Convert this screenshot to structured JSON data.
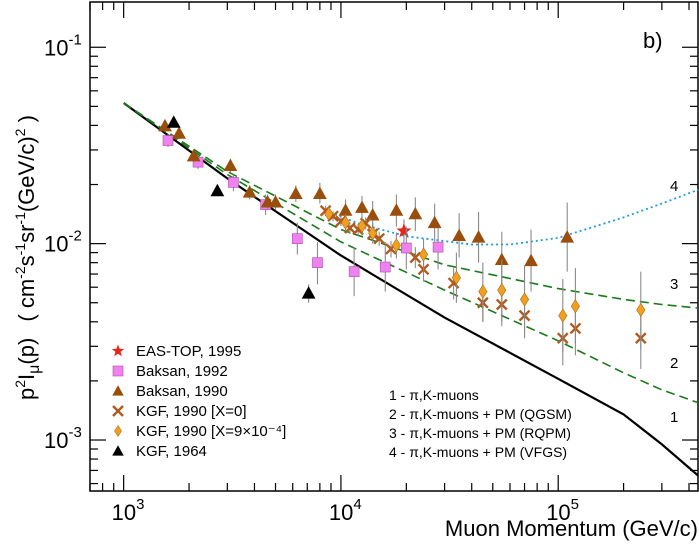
{
  "chart_data": {
    "type": "scatter",
    "panel_label": "b)",
    "xlabel": "Muon Momentum (GeV/c)",
    "ylabel_parts": [
      "p",
      "2",
      "I",
      "μ",
      "(p)",
      "( cm",
      "-2",
      "s",
      "-1",
      "sr",
      "-1",
      "(GeV/c)",
      "2",
      " )"
    ],
    "x_scale": "log",
    "y_scale": "log",
    "xlim": [
      700,
      440000
    ],
    "ylim": [
      0.00055,
      0.17
    ],
    "x_ticks": [
      {
        "value": 1000,
        "base": "10",
        "exp": "3"
      },
      {
        "value": 10000,
        "base": "10",
        "exp": "4"
      },
      {
        "value": 100000,
        "base": "10",
        "exp": "5"
      }
    ],
    "y_ticks": [
      {
        "value": 0.001,
        "base": "10",
        "exp": "-3"
      },
      {
        "value": 0.01,
        "base": "10",
        "exp": "-2"
      },
      {
        "value": 0.1,
        "base": "10",
        "exp": "-1"
      }
    ],
    "series": [
      {
        "name": "EAS-TOP, 1995",
        "marker": "star",
        "color": "#e8251b",
        "points": [
          [
            19500,
            0.0116,
            0.0098,
            0.0133
          ]
        ]
      },
      {
        "name": "Baksan, 1992",
        "marker": "square",
        "color": "#ee82ee",
        "points": [
          [
            1600,
            0.0335,
            0.031,
            0.036
          ],
          [
            2200,
            0.026,
            0.024,
            0.028
          ],
          [
            3200,
            0.0205,
            0.0185,
            0.0225
          ],
          [
            4500,
            0.0158,
            0.014,
            0.0178
          ],
          [
            6300,
            0.0106,
            0.0088,
            0.0128
          ],
          [
            7800,
            0.008,
            0.0062,
            0.0102
          ],
          [
            11500,
            0.0072,
            0.0054,
            0.0096
          ],
          [
            16000,
            0.0076,
            0.0057,
            0.0102
          ],
          [
            20000,
            0.0095,
            0.0074,
            0.0122
          ],
          [
            28000,
            0.0096,
            0.0074,
            0.0124
          ]
        ]
      },
      {
        "name": "Baksan, 1990",
        "marker": "triangle",
        "color": "#9a4e0c",
        "points": [
          [
            1550,
            0.0398,
            0.037,
            0.042
          ],
          [
            1800,
            0.0365,
            0.034,
            0.039
          ],
          [
            2100,
            0.028,
            0.026,
            0.03
          ],
          [
            3100,
            0.025,
            0.023,
            0.027
          ],
          [
            3800,
            0.0183,
            0.0168,
            0.0198
          ],
          [
            4600,
            0.0163,
            0.0148,
            0.0178
          ],
          [
            5000,
            0.0163,
            0.0148,
            0.0178
          ],
          [
            6200,
            0.018,
            0.0163,
            0.0198
          ],
          [
            8000,
            0.018,
            0.016,
            0.0204
          ],
          [
            10500,
            0.0148,
            0.0128,
            0.0168
          ],
          [
            12500,
            0.0153,
            0.0133,
            0.0175
          ],
          [
            14000,
            0.014,
            0.0118,
            0.0165
          ],
          [
            18000,
            0.0148,
            0.0122,
            0.0178
          ],
          [
            22000,
            0.0142,
            0.0116,
            0.0172
          ],
          [
            27000,
            0.0128,
            0.0102,
            0.016
          ],
          [
            35000,
            0.011,
            0.0085,
            0.0143
          ],
          [
            43000,
            0.0108,
            0.008,
            0.0145
          ],
          [
            55000,
            0.0083,
            0.006,
            0.0115
          ],
          [
            75000,
            0.0082,
            0.0057,
            0.0118
          ],
          [
            110000,
            0.0108,
            0.0072,
            0.0162
          ]
        ]
      },
      {
        "name": "KGF, 1990 [X=0]",
        "marker": "cross",
        "color": "#b05a1e",
        "points": [
          [
            8500,
            0.0147,
            0.0138,
            0.0156
          ],
          [
            9200,
            0.0138,
            0.013,
            0.0146
          ],
          [
            10000,
            0.013,
            0.0123,
            0.0138
          ],
          [
            11000,
            0.012,
            0.0112,
            0.0128
          ],
          [
            12000,
            0.0118,
            0.011,
            0.0126
          ],
          [
            13000,
            0.0127,
            0.0118,
            0.0136
          ],
          [
            14000,
            0.0112,
            0.0104,
            0.012
          ],
          [
            15000,
            0.0106,
            0.0097,
            0.0115
          ],
          [
            17000,
            0.0094,
            0.0085,
            0.0103
          ],
          [
            22000,
            0.0085,
            0.0075,
            0.0096
          ],
          [
            24000,
            0.0074,
            0.0064,
            0.0085
          ],
          [
            33000,
            0.0063,
            0.0052,
            0.0075
          ],
          [
            45000,
            0.005,
            0.004,
            0.0062
          ],
          [
            55000,
            0.0049,
            0.0038,
            0.0062
          ],
          [
            70000,
            0.0043,
            0.0033,
            0.0055
          ],
          [
            105000,
            0.0033,
            0.0024,
            0.0046
          ],
          [
            120000,
            0.0037,
            0.0027,
            0.0052
          ],
          [
            240000,
            0.0033,
            0.0023,
            0.0048
          ]
        ]
      },
      {
        "name": "KGF, 1990 [X=9×10⁻⁴]",
        "marker": "diamond",
        "color": "#f0a020",
        "points": [
          [
            8800,
            0.0142,
            0.013,
            0.0155
          ],
          [
            10500,
            0.0128,
            0.0116,
            0.0141
          ],
          [
            12500,
            0.0123,
            0.011,
            0.0137
          ],
          [
            14000,
            0.0113,
            0.01,
            0.0128
          ],
          [
            18000,
            0.0098,
            0.0084,
            0.0114
          ],
          [
            24000,
            0.0088,
            0.0073,
            0.0106
          ],
          [
            34000,
            0.0067,
            0.005,
            0.009
          ],
          [
            45000,
            0.0057,
            0.004,
            0.008
          ],
          [
            55000,
            0.0058,
            0.004,
            0.0083
          ],
          [
            70000,
            0.0052,
            0.0035,
            0.0077
          ],
          [
            105000,
            0.0043,
            0.0028,
            0.0066
          ],
          [
            120000,
            0.0048,
            0.0031,
            0.0075
          ],
          [
            240000,
            0.0046,
            0.0029,
            0.0072
          ]
        ]
      },
      {
        "name": "KGF, 1964",
        "marker": "triangle",
        "color": "#000000",
        "points": [
          [
            1700,
            0.0415,
            0.0395,
            0.0435
          ],
          [
            2700,
            0.0186,
            0.0176,
            0.0196
          ],
          [
            7100,
            0.0056,
            0.005,
            0.0062
          ]
        ]
      }
    ],
    "models": [
      {
        "label": "1",
        "description": "1 -  π,K-muons",
        "style": "solid",
        "color": "#000000",
        "points": [
          [
            1000,
            0.052
          ],
          [
            3000,
            0.0215
          ],
          [
            10000,
            0.0087
          ],
          [
            30000,
            0.0042
          ],
          [
            100000,
            0.00205
          ],
          [
            200000,
            0.00135
          ],
          [
            300000,
            0.00095
          ],
          [
            440000,
            0.00066
          ]
        ]
      },
      {
        "label": "2",
        "description": "2 -  π,K-muons  +  PM (QGSM)",
        "style": "dashed",
        "color": "#1a7a1a",
        "points": [
          [
            1000,
            0.052
          ],
          [
            3000,
            0.0225
          ],
          [
            10000,
            0.0102
          ],
          [
            30000,
            0.0058
          ],
          [
            100000,
            0.0032
          ],
          [
            200000,
            0.0022
          ],
          [
            300000,
            0.0018
          ],
          [
            440000,
            0.00155
          ]
        ]
      },
      {
        "label": "3",
        "description": "3 -  π,K-muons  +  PM (RQPM)",
        "style": "dashed",
        "color": "#1a7a1a",
        "points": [
          [
            1000,
            0.052
          ],
          [
            3000,
            0.0233
          ],
          [
            10000,
            0.0118
          ],
          [
            30000,
            0.0078
          ],
          [
            100000,
            0.0059
          ],
          [
            200000,
            0.0052
          ],
          [
            300000,
            0.0049
          ],
          [
            440000,
            0.0047
          ]
        ]
      },
      {
        "label": "4",
        "description": "4 -  π,K-muons  +  PM (VFGS)",
        "style": "dotted",
        "color": "#1f9fd8",
        "points": [
          [
            8500,
            0.0147
          ],
          [
            12000,
            0.0127
          ],
          [
            20000,
            0.0109
          ],
          [
            40000,
            0.0099
          ],
          [
            60000,
            0.0099
          ],
          [
            100000,
            0.0107
          ],
          [
            200000,
            0.0136
          ],
          [
            300000,
            0.016
          ],
          [
            440000,
            0.0188
          ]
        ]
      }
    ]
  }
}
